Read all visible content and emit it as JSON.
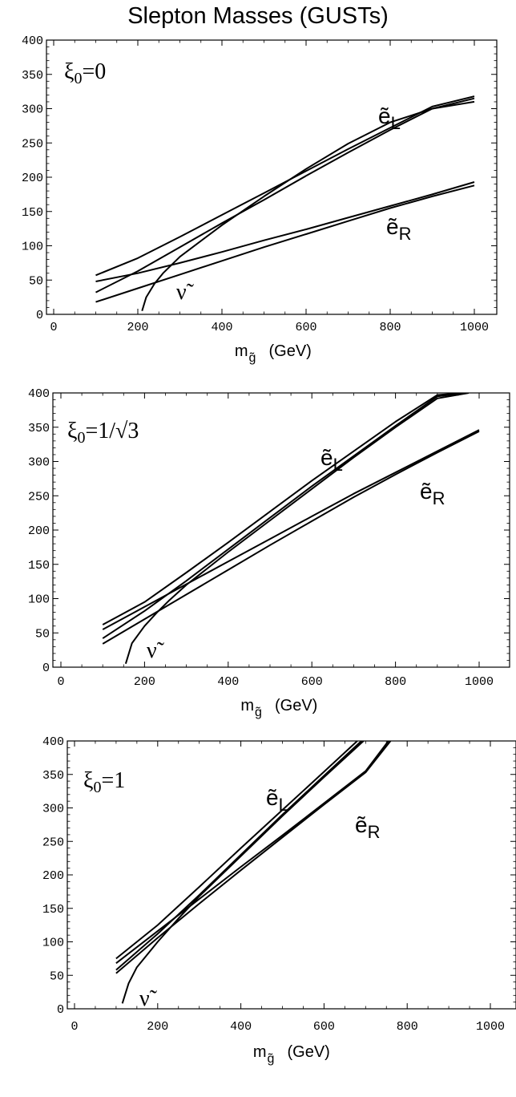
{
  "title": "Slepton Masses (GUSTs)",
  "chart_data": [
    {
      "type": "line",
      "parameter": {
        "symbol": "ξ",
        "sub": "0",
        "value": "=0"
      },
      "xlabel": {
        "main": "m",
        "sub": "g̃",
        "unit": "(GeV)"
      },
      "xlim": [
        0,
        1000
      ],
      "ylim": [
        0,
        400
      ],
      "xticks": [
        0,
        200,
        400,
        600,
        800,
        1000
      ],
      "yticks": [
        0,
        50,
        100,
        150,
        200,
        250,
        300,
        350,
        400
      ],
      "labels": {
        "eL": {
          "main": "ẽ",
          "sub": "L"
        },
        "eR": {
          "main": "ẽ",
          "sub": "R"
        },
        "nu": "ν̃"
      },
      "series": [
        {
          "x": [
            100,
            200,
            300,
            400,
            500,
            600,
            700,
            800,
            900,
            1000
          ],
          "y": [
            57,
            82,
            113,
            145,
            177,
            209,
            241,
            272,
            303,
            318
          ]
        },
        {
          "x": [
            100,
            200,
            300,
            400,
            500,
            600,
            700,
            800,
            900,
            1000
          ],
          "y": [
            32,
            63,
            98,
            133,
            167,
            202,
            236,
            269,
            300,
            315
          ]
        },
        {
          "x": [
            210,
            220,
            240,
            260,
            300,
            400,
            500,
            600,
            700,
            800,
            900,
            1000
          ],
          "y": [
            5,
            25,
            45,
            60,
            84,
            130,
            172,
            212,
            249,
            280,
            300,
            310
          ]
        },
        {
          "x": [
            100,
            200,
            300,
            400,
            500,
            600,
            700,
            800,
            900,
            1000
          ],
          "y": [
            48,
            60,
            75,
            91,
            108,
            124,
            141,
            158,
            175,
            193
          ]
        },
        {
          "x": [
            100,
            200,
            300,
            400,
            500,
            600,
            700,
            800,
            900,
            1000
          ],
          "y": [
            18,
            38,
            58,
            78,
            98,
            117,
            136,
            155,
            172,
            188
          ]
        }
      ]
    },
    {
      "type": "line",
      "parameter": {
        "symbol": "ξ",
        "sub": "0",
        "value": "=1/√3"
      },
      "xlabel": {
        "main": "m",
        "sub": "g̃",
        "unit": "(GeV)"
      },
      "xlim": [
        0,
        1000
      ],
      "ylim": [
        0,
        400
      ],
      "xticks": [
        0,
        200,
        400,
        600,
        800,
        1000
      ],
      "yticks": [
        0,
        50,
        100,
        150,
        200,
        250,
        300,
        350,
        400
      ],
      "labels": {
        "eL": {
          "main": "ẽ",
          "sub": "L"
        },
        "eR": {
          "main": "ẽ",
          "sub": "R"
        },
        "nu": "ν̃"
      },
      "series": [
        {
          "x": [
            100,
            200,
            300,
            400,
            500,
            600,
            700,
            800,
            900,
            960
          ],
          "y": [
            62,
            95,
            138,
            182,
            227,
            272,
            315,
            358,
            397,
            400
          ]
        },
        {
          "x": [
            100,
            200,
            300,
            400,
            500,
            600,
            700,
            800,
            900,
            970
          ],
          "y": [
            42,
            82,
            126,
            172,
            218,
            264,
            308,
            352,
            395,
            400
          ]
        },
        {
          "x": [
            155,
            170,
            200,
            230,
            260,
            300,
            400,
            500,
            600,
            700,
            800,
            900,
            975
          ],
          "y": [
            5,
            35,
            60,
            80,
            98,
            120,
            168,
            214,
            260,
            306,
            350,
            392,
            400
          ]
        },
        {
          "x": [
            100,
            200,
            300,
            400,
            500,
            600,
            700,
            800,
            900,
            1000
          ],
          "y": [
            55,
            88,
            121,
            154,
            187,
            220,
            253,
            284,
            315,
            346
          ]
        },
        {
          "x": [
            100,
            200,
            300,
            400,
            500,
            600,
            700,
            800,
            900,
            1000
          ],
          "y": [
            34,
            70,
            106,
            142,
            178,
            213,
            248,
            281,
            313,
            344
          ]
        }
      ]
    },
    {
      "type": "line",
      "parameter": {
        "symbol": "ξ",
        "sub": "0",
        "value": "=1"
      },
      "xlabel": {
        "main": "m",
        "sub": "g̃",
        "unit": "(GeV)"
      },
      "xlim": [
        0,
        1000
      ],
      "ylim": [
        0,
        400
      ],
      "xticks": [
        0,
        200,
        400,
        600,
        800,
        1000
      ],
      "yticks": [
        0,
        50,
        100,
        150,
        200,
        250,
        300,
        350,
        400
      ],
      "labels": {
        "eL": {
          "main": "ẽ",
          "sub": "L"
        },
        "eR": {
          "main": "ẽ",
          "sub": "R"
        },
        "nu": "ν̃"
      },
      "series": [
        {
          "x": [
            100,
            200,
            300,
            400,
            500,
            600,
            680
          ],
          "y": [
            75,
            125,
            182,
            240,
            297,
            354,
            400
          ]
        },
        {
          "x": [
            100,
            200,
            300,
            400,
            500,
            600,
            690
          ],
          "y": [
            58,
            112,
            170,
            230,
            290,
            348,
            400
          ]
        },
        {
          "x": [
            115,
            130,
            150,
            200,
            250,
            300,
            400,
            500,
            600,
            695
          ],
          "y": [
            8,
            38,
            62,
            100,
            135,
            168,
            228,
            288,
            346,
            400
          ]
        },
        {
          "x": [
            100,
            200,
            300,
            400,
            500,
            600,
            700,
            755
          ],
          "y": [
            68,
            116,
            164,
            212,
            259,
            307,
            355,
            400
          ]
        },
        {
          "x": [
            100,
            200,
            300,
            400,
            500,
            600,
            700,
            760
          ],
          "y": [
            53,
            106,
            157,
            207,
            256,
            305,
            353,
            400
          ]
        }
      ]
    }
  ]
}
